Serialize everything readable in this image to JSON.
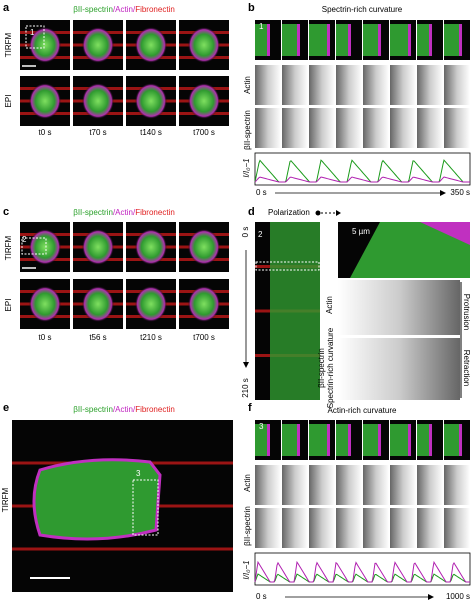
{
  "panels": {
    "a": {
      "letter": "a",
      "legend": [
        "βII-spectrin",
        "/Actin/",
        "Fibronectin"
      ],
      "rows": [
        "TIRFM",
        "EPI"
      ],
      "roi": "1",
      "times": [
        "t0 s",
        "t70 s",
        "t140 s",
        "t700 s"
      ]
    },
    "b": {
      "letter": "b",
      "title": "Spectrin-rich curvature",
      "roi": "1",
      "rows": [
        "Actin",
        "βII-spectrin"
      ],
      "ylabel": "I/I₀−1",
      "start": "0 s",
      "end": "350 s"
    },
    "c": {
      "letter": "c",
      "legend": [
        "βII-spectrin",
        "/Actin/",
        "Fibronectin"
      ],
      "rows": [
        "TIRFM",
        "EPI"
      ],
      "roi": "2",
      "times": [
        "t0 s",
        "t56 s",
        "t210 s",
        "t700 s"
      ]
    },
    "d": {
      "letter": "d",
      "polarization": "Polarization",
      "roi": "2",
      "start": "0 s",
      "end": "210 s",
      "scale": "5 µm",
      "rows": [
        "Actin",
        "βII-spectrin"
      ],
      "curvature": "Spectrin-rich curvature",
      "protrusion": "Protrusion",
      "retraction": "Retraction"
    },
    "e": {
      "letter": "e",
      "legend": [
        "βII-spectrin",
        "/Actin/",
        "Fibronectin"
      ],
      "row": "TIRFM",
      "roi": "3"
    },
    "f": {
      "letter": "f",
      "title": "Actin-rich curvature",
      "roi": "3",
      "rows": [
        "Actin",
        "βII-spectrin"
      ],
      "ylabel": "I/I₀−1",
      "start": "0 s",
      "end": "1000 s"
    }
  }
}
